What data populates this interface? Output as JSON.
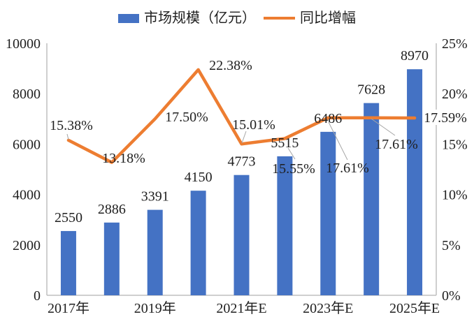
{
  "chart_data": {
    "type": "combo-bar-line",
    "series": [
      {
        "name": "市场规模（亿元）",
        "type": "bar",
        "color": "#4472C4",
        "values": [
          2550,
          2886,
          3391,
          4150,
          4773,
          5515,
          6486,
          7628,
          8970
        ],
        "labels": [
          "2550",
          "2886",
          "3391",
          "4150",
          "4773",
          "5515",
          "6486",
          "7628",
          "8970"
        ]
      },
      {
        "name": "同比增幅",
        "type": "line",
        "color": "#ED7D31",
        "values": [
          15.38,
          13.18,
          17.5,
          22.38,
          15.01,
          15.55,
          17.61,
          17.61,
          17.59
        ],
        "labels": [
          "15.38%",
          "13.18%",
          "17.50%",
          "22.38%",
          "15.01%",
          "15.55%",
          "17.61%",
          "17.61%",
          "17.59%"
        ]
      }
    ],
    "x_tick_labels": [
      "2017年",
      "2019年",
      "2021年E",
      "2023年E",
      "2025年E"
    ],
    "left_axis": {
      "min": 0,
      "max": 10000,
      "ticks": [
        "0",
        "2000",
        "4000",
        "6000",
        "8000",
        "10000"
      ]
    },
    "right_axis": {
      "min": 0,
      "max": 25,
      "ticks": [
        "0%",
        "5%",
        "10%",
        "15%",
        "20%",
        "25%"
      ]
    },
    "legend_position": "top-center",
    "grid": "off",
    "colors": {
      "bar": "#4472C4",
      "line": "#ED7D31",
      "text": "#1f1f1f",
      "axis": "#BFBFBF",
      "leader": "#A6A6A6",
      "background": "#ffffff"
    }
  }
}
